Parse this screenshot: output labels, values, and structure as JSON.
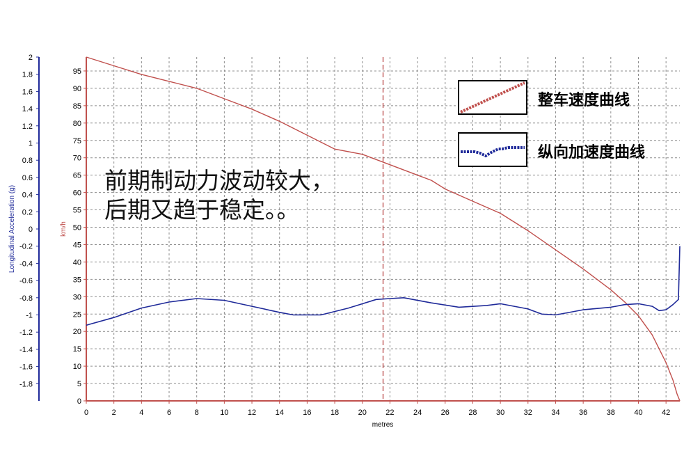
{
  "chart_data": {
    "type": "line",
    "xlabel": "metres",
    "x_ticks": [
      0,
      2,
      4,
      6,
      8,
      10,
      12,
      14,
      16,
      18,
      20,
      22,
      24,
      26,
      28,
      30,
      32,
      34,
      36,
      38,
      40,
      42
    ],
    "xlim": [
      0,
      43
    ],
    "left_axis": {
      "label": "Longitudinal Acceleration (g)",
      "ylim": [
        -2,
        2
      ],
      "ticks": [
        "2",
        "1.8",
        "1.6",
        "1.4",
        "1.2",
        "1",
        "0.8",
        "0.6",
        "0.4",
        "0.2",
        "0",
        "-0.2",
        "-0.4",
        "-0.6",
        "-0.8",
        "-1",
        "-1.2",
        "-1.4",
        "-1.6",
        "-1.8"
      ]
    },
    "right_axis": {
      "label": "km/h",
      "ylim": [
        0,
        99
      ],
      "ticks": [
        "95",
        "90",
        "85",
        "80",
        "75",
        "70",
        "65",
        "60",
        "55",
        "50",
        "45",
        "40",
        "35",
        "30",
        "25",
        "20",
        "15",
        "10",
        "5",
        "0"
      ]
    },
    "grid": true,
    "vline_x": 21.5,
    "series": [
      {
        "name": "整车速度曲线",
        "axis": "speed",
        "color": "#c0504d",
        "x": [
          0,
          2,
          4,
          6,
          8,
          10,
          12,
          14,
          16,
          18,
          20,
          22,
          24,
          25,
          26,
          28,
          30,
          32,
          34,
          36,
          38,
          39,
          40,
          41,
          42,
          42.5,
          42.8,
          43
        ],
        "y": [
          99,
          96.5,
          94,
          92,
          90,
          87,
          84,
          80.5,
          76.5,
          72.5,
          71,
          68,
          65,
          63.5,
          61,
          57.5,
          54,
          49,
          43.5,
          38,
          32,
          28.5,
          24.5,
          19,
          11,
          6,
          2,
          0
        ]
      },
      {
        "name": "纵向加速度曲线",
        "axis": "accel",
        "color": "#1f2a99",
        "x": [
          0,
          2,
          4,
          6,
          8,
          10,
          12,
          14,
          15,
          17,
          19,
          21,
          22,
          23,
          25,
          27,
          29,
          30,
          32,
          33,
          34,
          36,
          38,
          39,
          40,
          41,
          41.5,
          42,
          42.5,
          42.9,
          43
        ],
        "y": [
          -1.12,
          -1.03,
          -0.92,
          -0.85,
          -0.81,
          -0.83,
          -0.9,
          -0.97,
          -1.0,
          -1.0,
          -0.92,
          -0.82,
          -0.81,
          -0.8,
          -0.86,
          -0.91,
          -0.89,
          -0.87,
          -0.93,
          -0.99,
          -1.0,
          -0.94,
          -0.91,
          -0.88,
          -0.87,
          -0.9,
          -0.95,
          -0.94,
          -0.88,
          -0.82,
          -0.2
        ]
      }
    ]
  },
  "annotation": {
    "line1": "前期制动力波动较大，",
    "line2": "后期又趋于稳定。。"
  },
  "legend": [
    {
      "label": "整车速度曲线",
      "color": "#c0504d",
      "icon": "speed-legend-icon"
    },
    {
      "label": "纵向加速度曲线",
      "color": "#1f2a99",
      "icon": "accel-legend-icon"
    }
  ]
}
